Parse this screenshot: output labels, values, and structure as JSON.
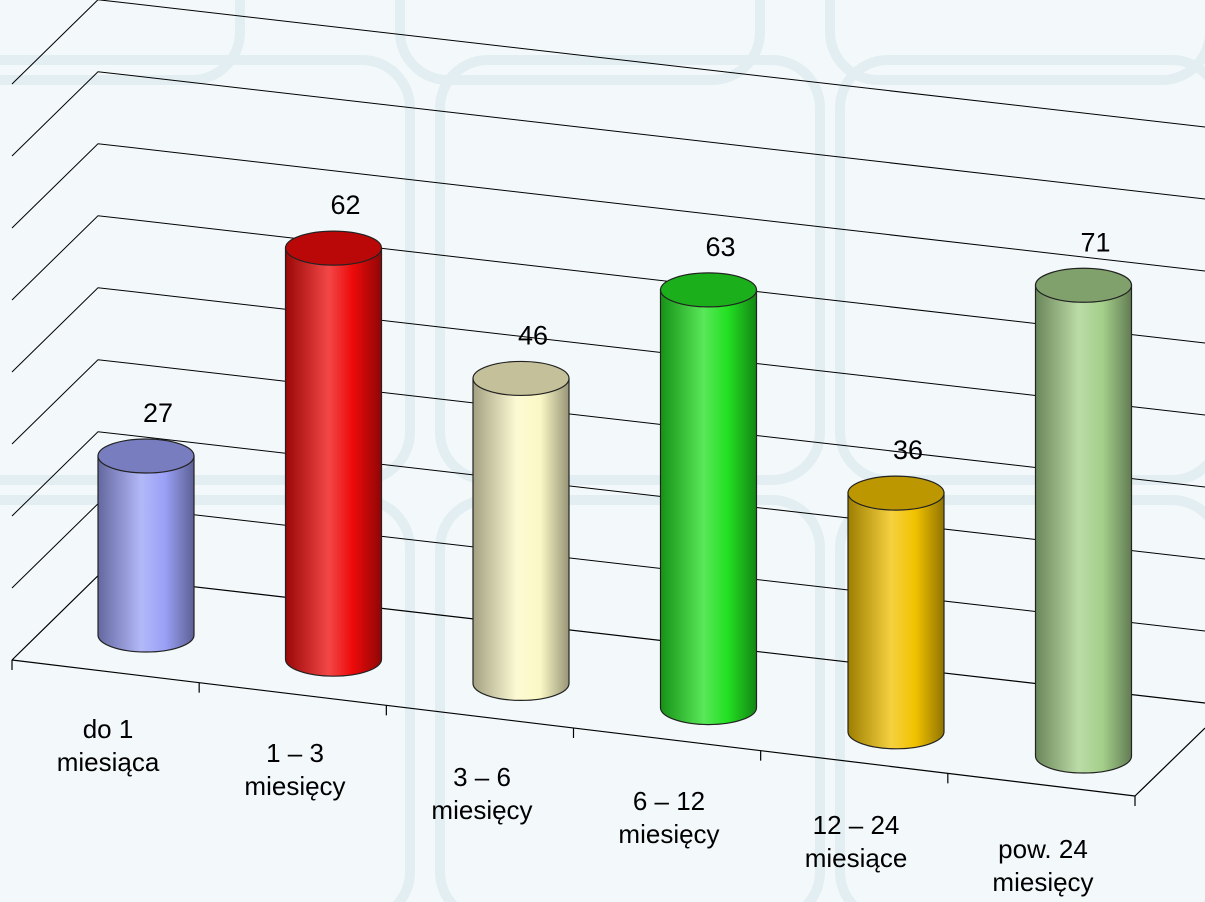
{
  "chart_data": {
    "type": "bar",
    "style": "3d-cylinder",
    "categories": [
      [
        "do 1",
        "miesiąca"
      ],
      [
        "1 – 3",
        "miesięcy"
      ],
      [
        "3 – 6",
        "miesięcy"
      ],
      [
        "6 – 12",
        "miesięcy"
      ],
      [
        "12 – 24",
        "miesiące"
      ],
      [
        "pow. 24",
        "miesięcy"
      ]
    ],
    "values": [
      27,
      62,
      46,
      63,
      36,
      71
    ],
    "data_labels": [
      "27",
      "62",
      "46",
      "63",
      "36",
      "71"
    ],
    "colors": [
      "#9aa0f6",
      "#ee0a0a",
      "#fbf8c6",
      "#22e022",
      "#f2c200",
      "#a4cf8a"
    ],
    "title": "",
    "xlabel": "",
    "ylabel": "",
    "ylim": [
      0,
      80
    ],
    "grid": true,
    "legend": "none"
  }
}
